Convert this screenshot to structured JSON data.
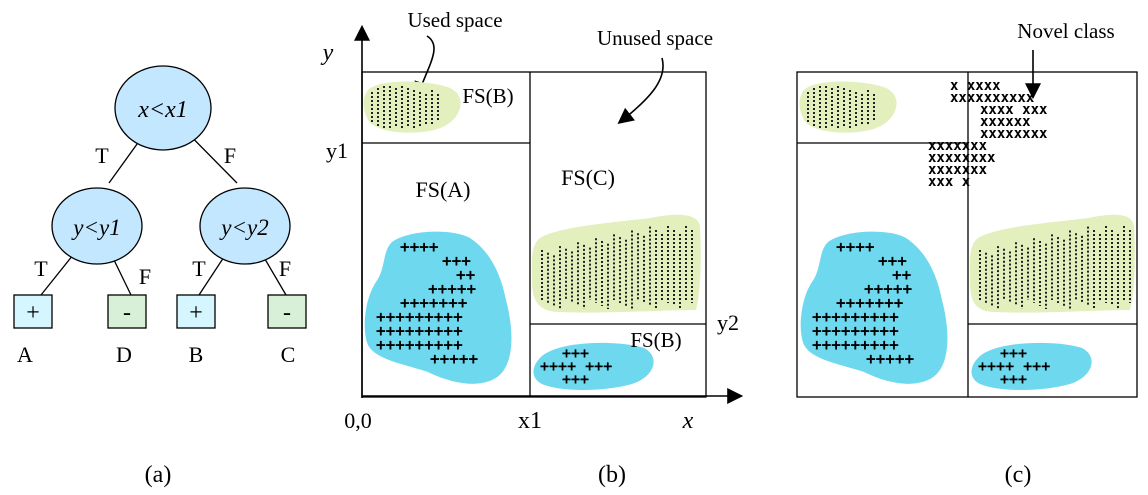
{
  "tree": {
    "root": "x<x1",
    "left_node": "y<y1",
    "right_node": "y<y2",
    "edge_true": "T",
    "edge_false": "F",
    "leaf_symbols": [
      "+",
      "-",
      "+",
      "-"
    ],
    "leaf_names": [
      "A",
      "D",
      "B",
      "C"
    ],
    "caption": "(a)"
  },
  "panel_b": {
    "axis_y": "y",
    "axis_x": "x",
    "origin": "0,0",
    "tick_y1": "y1",
    "tick_y2": "y2",
    "tick_x1": "x1",
    "used_space": "Used space",
    "unused_space": "Unused space",
    "fs_b_top": "FS(B)",
    "fs_a": "FS(A)",
    "fs_c": "FS(C)",
    "fs_b_bottom": "FS(B)",
    "plus_rows_a": [
      "++++",
      "+++",
      "++",
      "+++++",
      "+++++++",
      "+++++++++",
      "+++++++++",
      "+++++++++",
      "+++++"
    ],
    "plus_rows_b": [
      "+++",
      "++++ +++",
      "+++"
    ],
    "caption": "(b)"
  },
  "panel_c": {
    "novel_class": "Novel class",
    "x_rows": [
      "x  xxxx",
      "xxxxxxxxxx",
      "xxxx xxx",
      "xxxxxx",
      "xxxxxxxx",
      "xxxxxxx",
      "xxxxxxxx",
      "xxxxxxx",
      "xxx x"
    ],
    "plus_rows_a": [
      "++++",
      "+++",
      "++",
      "+++++",
      "+++++++",
      "+++++++++",
      "+++++++++",
      "+++++++++",
      "+++++"
    ],
    "plus_rows_b": [
      "+++",
      "++++ +++",
      "+++"
    ],
    "caption": "(c)"
  },
  "colors": {
    "cyan_blob": "#6ed8ef",
    "green_blob": "#e3efbd",
    "leaf_plus": "#d6f6ff",
    "leaf_minus": "#d8efd8",
    "node_fill": "#c3e7ff"
  }
}
